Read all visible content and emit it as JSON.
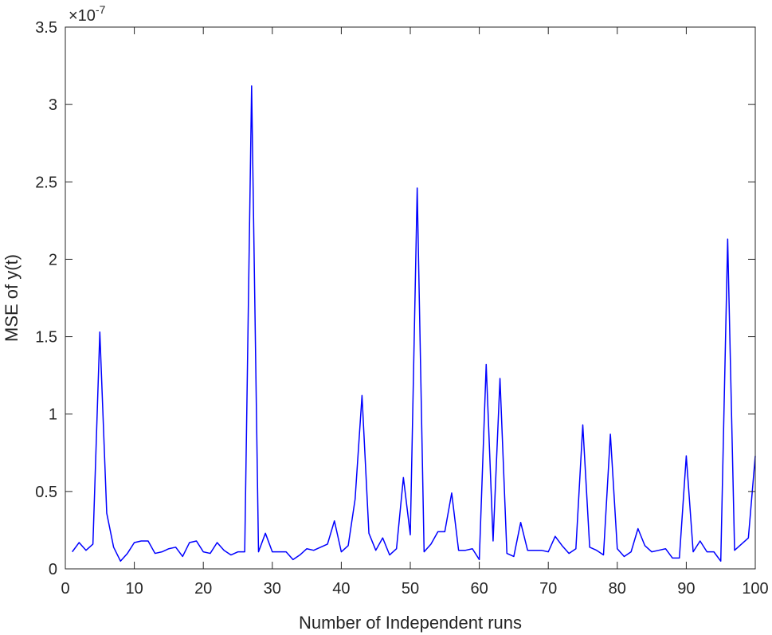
{
  "chart_data": {
    "type": "line",
    "title": "",
    "xlabel": "Number of Independent runs",
    "ylabel": "MSE of y(t)",
    "y_exponent_multiplier": "×10",
    "y_exponent_power": "-7",
    "xlim": [
      0,
      100
    ],
    "ylim": [
      0,
      3.5
    ],
    "xticks": [
      0,
      10,
      20,
      30,
      40,
      50,
      60,
      70,
      80,
      90,
      100
    ],
    "xtick_labels": [
      "0",
      "10",
      "20",
      "30",
      "40",
      "50",
      "60",
      "70",
      "80",
      "90",
      "100"
    ],
    "yticks": [
      0,
      0.5,
      1,
      1.5,
      2,
      2.5,
      3,
      3.5
    ],
    "ytick_labels": [
      "0",
      "0.5",
      "1",
      "1.5",
      "2",
      "2.5",
      "3",
      "3.5"
    ],
    "grid": false,
    "line_color": "#0000ff",
    "x": [
      1,
      2,
      3,
      4,
      5,
      6,
      7,
      8,
      9,
      10,
      11,
      12,
      13,
      14,
      15,
      16,
      17,
      18,
      19,
      20,
      21,
      22,
      23,
      24,
      25,
      26,
      27,
      28,
      29,
      30,
      31,
      32,
      33,
      34,
      35,
      36,
      37,
      38,
      39,
      40,
      41,
      42,
      43,
      44,
      45,
      46,
      47,
      48,
      49,
      50,
      51,
      52,
      53,
      54,
      55,
      56,
      57,
      58,
      59,
      60,
      61,
      62,
      63,
      64,
      65,
      66,
      67,
      68,
      69,
      70,
      71,
      72,
      73,
      74,
      75,
      76,
      77,
      78,
      79,
      80,
      81,
      82,
      83,
      84,
      85,
      86,
      87,
      88,
      89,
      90,
      91,
      92,
      93,
      94,
      95,
      96,
      97,
      98,
      99,
      100
    ],
    "values": [
      0.11,
      0.17,
      0.12,
      0.16,
      1.53,
      0.36,
      0.14,
      0.05,
      0.1,
      0.17,
      0.18,
      0.18,
      0.1,
      0.11,
      0.13,
      0.14,
      0.08,
      0.17,
      0.18,
      0.11,
      0.1,
      0.17,
      0.12,
      0.09,
      0.11,
      0.11,
      3.12,
      0.11,
      0.23,
      0.11,
      0.11,
      0.11,
      0.06,
      0.09,
      0.13,
      0.12,
      0.14,
      0.16,
      0.31,
      0.11,
      0.15,
      0.45,
      1.12,
      0.23,
      0.12,
      0.2,
      0.09,
      0.13,
      0.59,
      0.22,
      2.46,
      0.11,
      0.16,
      0.24,
      0.24,
      0.49,
      0.12,
      0.12,
      0.13,
      0.06,
      1.32,
      0.18,
      1.23,
      0.1,
      0.08,
      0.3,
      0.12,
      0.12,
      0.12,
      0.11,
      0.21,
      0.15,
      0.1,
      0.13,
      0.93,
      0.14,
      0.12,
      0.09,
      0.87,
      0.13,
      0.08,
      0.11,
      0.26,
      0.15,
      0.11,
      0.12,
      0.13,
      0.07,
      0.07,
      0.73,
      0.11,
      0.18,
      0.11,
      0.11,
      0.05,
      2.13,
      0.12,
      0.16,
      0.2,
      0.73
    ]
  }
}
